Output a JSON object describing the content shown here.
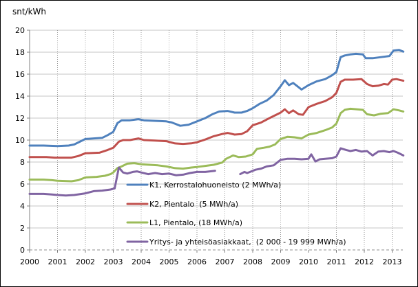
{
  "chart_data": {
    "type": "line",
    "title": "snt/kWh",
    "x_axis": {
      "labels": [
        "2000",
        "2001",
        "2002",
        "2003",
        "2004",
        "2005",
        "2006",
        "2007",
        "2008",
        "2009",
        "2010",
        "2011",
        "2012",
        "2013"
      ],
      "min": 2000,
      "max": 2013.5
    },
    "y_axis": {
      "min": 0,
      "max": 20,
      "step": 2,
      "ticks": [
        20,
        18,
        16,
        14,
        12,
        10,
        8,
        6,
        4,
        2,
        0
      ]
    },
    "grid": {
      "horizontal": "solid",
      "vertical": "dotted-yearly",
      "zero_line": "dashed"
    },
    "legend_position": "inside-bottom-left",
    "series": [
      {
        "id": "K1",
        "name": "K1, Kerrostalohuoneisto (2 MWh/a)",
        "color": "#4F81BD",
        "segments": [
          [
            [
              2000,
              9.5
            ],
            [
              2000.5,
              9.5
            ],
            [
              2001,
              9.45
            ],
            [
              2001.4,
              9.5
            ],
            [
              2001.6,
              9.6
            ],
            [
              2001.8,
              9.85
            ],
            [
              2002,
              10.1
            ],
            [
              2002.3,
              10.15
            ],
            [
              2002.6,
              10.2
            ],
            [
              2002.8,
              10.45
            ],
            [
              2003,
              10.75
            ],
            [
              2003.15,
              11.55
            ],
            [
              2003.3,
              11.8
            ],
            [
              2003.6,
              11.8
            ],
            [
              2003.9,
              11.9
            ],
            [
              2004.1,
              11.8
            ],
            [
              2004.5,
              11.75
            ],
            [
              2004.9,
              11.7
            ],
            [
              2005.1,
              11.6
            ],
            [
              2005.4,
              11.3
            ],
            [
              2005.7,
              11.4
            ],
            [
              2006,
              11.7
            ],
            [
              2006.3,
              12.0
            ],
            [
              2006.55,
              12.35
            ],
            [
              2006.8,
              12.6
            ],
            [
              2007.1,
              12.65
            ],
            [
              2007.35,
              12.5
            ],
            [
              2007.6,
              12.5
            ],
            [
              2007.8,
              12.65
            ],
            [
              2008,
              12.9
            ],
            [
              2008.25,
              13.3
            ],
            [
              2008.5,
              13.6
            ],
            [
              2008.75,
              14.1
            ],
            [
              2009,
              14.9
            ],
            [
              2009.15,
              15.45
            ],
            [
              2009.3,
              15.0
            ],
            [
              2009.45,
              15.2
            ],
            [
              2009.6,
              14.9
            ],
            [
              2009.75,
              14.6
            ],
            [
              2010,
              15.0
            ],
            [
              2010.3,
              15.35
            ],
            [
              2010.6,
              15.55
            ],
            [
              2010.85,
              15.9
            ],
            [
              2011,
              16.2
            ],
            [
              2011.15,
              17.55
            ],
            [
              2011.3,
              17.7
            ],
            [
              2011.5,
              17.8
            ],
            [
              2011.7,
              17.85
            ],
            [
              2011.95,
              17.8
            ],
            [
              2012.05,
              17.45
            ],
            [
              2012.3,
              17.45
            ],
            [
              2012.6,
              17.55
            ],
            [
              2012.9,
              17.65
            ],
            [
              2013.05,
              18.15
            ],
            [
              2013.25,
              18.2
            ],
            [
              2013.4,
              18.05
            ]
          ]
        ]
      },
      {
        "id": "K2",
        "name": "K2, Pientalo  (5 MWh/a)",
        "color": "#C0504D",
        "segments": [
          [
            [
              2000,
              8.45
            ],
            [
              2000.6,
              8.45
            ],
            [
              2000.9,
              8.4
            ],
            [
              2001.5,
              8.4
            ],
            [
              2001.75,
              8.55
            ],
            [
              2002,
              8.8
            ],
            [
              2002.5,
              8.85
            ],
            [
              2002.8,
              9.1
            ],
            [
              2003,
              9.3
            ],
            [
              2003.2,
              9.85
            ],
            [
              2003.35,
              10.0
            ],
            [
              2003.6,
              10.0
            ],
            [
              2003.9,
              10.15
            ],
            [
              2004.1,
              10.0
            ],
            [
              2004.5,
              9.95
            ],
            [
              2004.9,
              9.9
            ],
            [
              2005.2,
              9.7
            ],
            [
              2005.5,
              9.65
            ],
            [
              2005.8,
              9.7
            ],
            [
              2006,
              9.8
            ],
            [
              2006.3,
              10.05
            ],
            [
              2006.6,
              10.35
            ],
            [
              2006.9,
              10.55
            ],
            [
              2007.1,
              10.65
            ],
            [
              2007.35,
              10.5
            ],
            [
              2007.6,
              10.55
            ],
            [
              2007.8,
              10.8
            ],
            [
              2008,
              11.35
            ],
            [
              2008.3,
              11.6
            ],
            [
              2008.6,
              12.0
            ],
            [
              2008.8,
              12.25
            ],
            [
              2009,
              12.5
            ],
            [
              2009.15,
              12.8
            ],
            [
              2009.3,
              12.45
            ],
            [
              2009.45,
              12.7
            ],
            [
              2009.65,
              12.35
            ],
            [
              2009.8,
              12.3
            ],
            [
              2010,
              13.0
            ],
            [
              2010.3,
              13.3
            ],
            [
              2010.6,
              13.55
            ],
            [
              2010.85,
              13.9
            ],
            [
              2011,
              14.3
            ],
            [
              2011.15,
              15.3
            ],
            [
              2011.3,
              15.5
            ],
            [
              2011.6,
              15.5
            ],
            [
              2011.9,
              15.55
            ],
            [
              2012.1,
              15.1
            ],
            [
              2012.3,
              14.9
            ],
            [
              2012.5,
              14.95
            ],
            [
              2012.7,
              15.1
            ],
            [
              2012.85,
              15.05
            ],
            [
              2013,
              15.5
            ],
            [
              2013.15,
              15.55
            ],
            [
              2013.4,
              15.4
            ]
          ]
        ]
      },
      {
        "id": "L1",
        "name": "L1, Pientalo, (18 MWh/a)",
        "color": "#9BBB59",
        "segments": [
          [
            [
              2000,
              6.4
            ],
            [
              2000.5,
              6.4
            ],
            [
              2000.8,
              6.35
            ],
            [
              2001,
              6.3
            ],
            [
              2001.5,
              6.25
            ],
            [
              2001.75,
              6.35
            ],
            [
              2002,
              6.6
            ],
            [
              2002.4,
              6.65
            ],
            [
              2002.7,
              6.75
            ],
            [
              2002.9,
              6.9
            ],
            [
              2003,
              7.05
            ],
            [
              2003.15,
              7.45
            ],
            [
              2003.3,
              7.6
            ],
            [
              2003.5,
              7.85
            ],
            [
              2003.75,
              7.9
            ],
            [
              2004,
              7.8
            ],
            [
              2004.3,
              7.75
            ],
            [
              2004.6,
              7.7
            ],
            [
              2004.9,
              7.6
            ],
            [
              2005.2,
              7.45
            ],
            [
              2005.5,
              7.4
            ],
            [
              2005.8,
              7.5
            ],
            [
              2006,
              7.55
            ],
            [
              2006.3,
              7.65
            ],
            [
              2006.6,
              7.75
            ],
            [
              2006.9,
              7.95
            ],
            [
              2007.05,
              8.3
            ],
            [
              2007.3,
              8.6
            ],
            [
              2007.5,
              8.45
            ],
            [
              2007.75,
              8.5
            ],
            [
              2008,
              8.7
            ],
            [
              2008.15,
              9.2
            ],
            [
              2008.4,
              9.3
            ],
            [
              2008.6,
              9.4
            ],
            [
              2008.8,
              9.6
            ],
            [
              2009,
              10.1
            ],
            [
              2009.25,
              10.3
            ],
            [
              2009.5,
              10.25
            ],
            [
              2009.75,
              10.15
            ],
            [
              2010,
              10.5
            ],
            [
              2010.3,
              10.65
            ],
            [
              2010.6,
              10.9
            ],
            [
              2010.85,
              11.15
            ],
            [
              2011,
              11.5
            ],
            [
              2011.15,
              12.45
            ],
            [
              2011.3,
              12.75
            ],
            [
              2011.5,
              12.85
            ],
            [
              2011.75,
              12.8
            ],
            [
              2011.95,
              12.75
            ],
            [
              2012.1,
              12.35
            ],
            [
              2012.35,
              12.25
            ],
            [
              2012.6,
              12.4
            ],
            [
              2012.85,
              12.45
            ],
            [
              2013.05,
              12.8
            ],
            [
              2013.25,
              12.7
            ],
            [
              2013.4,
              12.6
            ]
          ]
        ]
      },
      {
        "id": "Yritys",
        "name": "Yritys- ja yhteisöasiakkaat,  (2 000 - 19 999 MWh/a)",
        "color": "#8064A2",
        "segments": [
          [
            [
              2000,
              5.1
            ],
            [
              2000.5,
              5.1
            ],
            [
              2000.8,
              5.05
            ],
            [
              2001,
              5.0
            ],
            [
              2001.3,
              4.95
            ],
            [
              2001.6,
              5.0
            ],
            [
              2002,
              5.15
            ],
            [
              2002.3,
              5.35
            ],
            [
              2002.6,
              5.4
            ],
            [
              2002.9,
              5.5
            ],
            [
              2003.05,
              5.6
            ],
            [
              2003.2,
              7.5
            ],
            [
              2003.35,
              7.05
            ],
            [
              2003.5,
              6.95
            ],
            [
              2003.7,
              7.1
            ],
            [
              2003.85,
              7.15
            ],
            [
              2004,
              7.05
            ],
            [
              2004.25,
              6.9
            ],
            [
              2004.5,
              7.0
            ],
            [
              2004.75,
              6.9
            ],
            [
              2005,
              6.95
            ],
            [
              2005.25,
              6.8
            ],
            [
              2005.5,
              6.85
            ],
            [
              2005.75,
              7.0
            ],
            [
              2006,
              7.1
            ],
            [
              2006.3,
              7.1
            ],
            [
              2006.65,
              7.2
            ]
          ],
          [
            [
              2007.55,
              6.9
            ],
            [
              2007.7,
              7.1
            ],
            [
              2007.8,
              7.0
            ],
            [
              2007.95,
              7.15
            ],
            [
              2008.1,
              7.3
            ],
            [
              2008.3,
              7.4
            ],
            [
              2008.5,
              7.6
            ],
            [
              2008.75,
              7.7
            ],
            [
              2009,
              8.2
            ],
            [
              2009.25,
              8.3
            ],
            [
              2009.5,
              8.3
            ],
            [
              2009.75,
              8.25
            ],
            [
              2010,
              8.3
            ],
            [
              2010.1,
              8.7
            ],
            [
              2010.25,
              8.05
            ],
            [
              2010.4,
              8.25
            ],
            [
              2010.6,
              8.3
            ],
            [
              2010.85,
              8.35
            ],
            [
              2011,
              8.5
            ],
            [
              2011.15,
              9.25
            ],
            [
              2011.35,
              9.1
            ],
            [
              2011.5,
              9.0
            ],
            [
              2011.7,
              9.1
            ],
            [
              2011.9,
              8.95
            ],
            [
              2012.1,
              9.0
            ],
            [
              2012.3,
              8.6
            ],
            [
              2012.5,
              8.95
            ],
            [
              2012.7,
              9.0
            ],
            [
              2012.9,
              8.9
            ],
            [
              2013.05,
              9.0
            ],
            [
              2013.2,
              8.85
            ],
            [
              2013.4,
              8.6
            ]
          ]
        ]
      }
    ]
  }
}
